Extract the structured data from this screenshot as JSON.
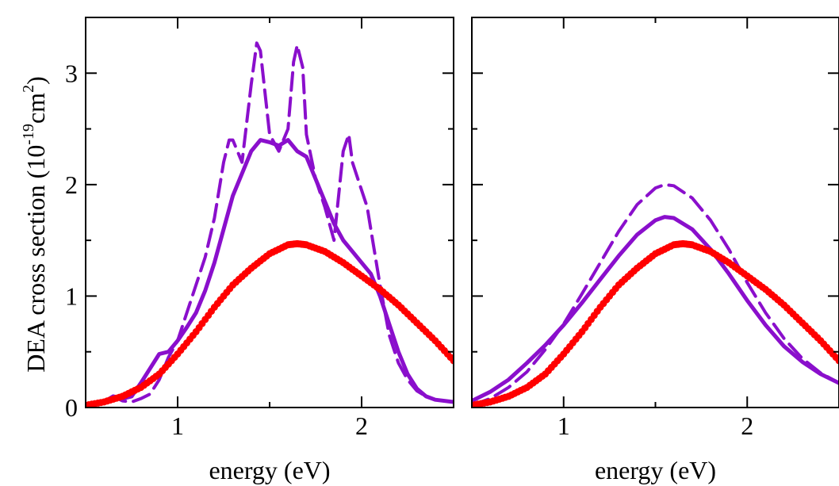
{
  "colors": {
    "model": "#8a0fcc",
    "experiment": "#ff0000",
    "axes": "#000000"
  },
  "y_label": {
    "prefix": "DEA cross section (10",
    "exp1": "-19",
    "mid": "cm",
    "exp2": "2",
    "suffix": ")"
  },
  "chart_data": [
    {
      "type": "line",
      "xlabel": "energy (eV)",
      "xlim": [
        0.5,
        2.5
      ],
      "ylim": [
        0,
        3.5
      ],
      "xticks": [
        1,
        2
      ],
      "yticks": [
        0,
        1,
        2,
        3
      ],
      "series": [
        {
          "style": "dashed",
          "color": "#8a0fcc",
          "x": [
            0.5,
            0.6,
            0.65,
            0.7,
            0.75,
            0.8,
            0.85,
            0.9,
            0.95,
            1.0,
            1.05,
            1.1,
            1.15,
            1.2,
            1.25,
            1.28,
            1.3,
            1.35,
            1.4,
            1.43,
            1.45,
            1.47,
            1.5,
            1.55,
            1.6,
            1.63,
            1.65,
            1.68,
            1.7,
            1.75,
            1.8,
            1.85,
            1.9,
            1.93,
            1.95,
            2.0,
            2.03,
            2.05,
            2.1,
            2.15,
            2.2,
            2.25,
            2.3,
            2.35,
            2.4,
            2.5
          ],
          "y": [
            0.02,
            0.05,
            0.1,
            0.06,
            0.05,
            0.08,
            0.12,
            0.25,
            0.45,
            0.6,
            0.85,
            1.1,
            1.35,
            1.7,
            2.2,
            2.4,
            2.4,
            2.2,
            2.9,
            3.27,
            3.2,
            2.9,
            2.45,
            2.3,
            2.5,
            3.1,
            3.25,
            3.05,
            2.45,
            2.05,
            1.8,
            1.5,
            2.3,
            2.45,
            2.2,
            1.95,
            1.8,
            1.6,
            1.1,
            0.65,
            0.4,
            0.25,
            0.15,
            0.1,
            0.07,
            0.05
          ]
        },
        {
          "style": "solid",
          "color": "#8a0fcc",
          "x": [
            0.5,
            0.6,
            0.65,
            0.7,
            0.75,
            0.8,
            0.85,
            0.9,
            0.95,
            1.0,
            1.05,
            1.1,
            1.15,
            1.2,
            1.25,
            1.3,
            1.35,
            1.4,
            1.45,
            1.5,
            1.55,
            1.6,
            1.65,
            1.7,
            1.75,
            1.8,
            1.85,
            1.9,
            1.95,
            2.0,
            2.05,
            2.1,
            2.15,
            2.2,
            2.25,
            2.3,
            2.35,
            2.4,
            2.5
          ],
          "y": [
            0.02,
            0.05,
            0.1,
            0.08,
            0.1,
            0.22,
            0.35,
            0.48,
            0.5,
            0.6,
            0.72,
            0.85,
            1.05,
            1.3,
            1.6,
            1.9,
            2.1,
            2.3,
            2.4,
            2.38,
            2.35,
            2.4,
            2.3,
            2.25,
            2.05,
            1.85,
            1.65,
            1.5,
            1.4,
            1.3,
            1.2,
            1.0,
            0.75,
            0.5,
            0.3,
            0.17,
            0.1,
            0.07,
            0.05
          ]
        },
        {
          "style": "solid-markers",
          "color": "#ff0000",
          "x": [
            0.5,
            0.6,
            0.7,
            0.8,
            0.9,
            1.0,
            1.1,
            1.2,
            1.3,
            1.4,
            1.5,
            1.6,
            1.65,
            1.7,
            1.8,
            1.9,
            2.0,
            2.1,
            2.2,
            2.3,
            2.4,
            2.5
          ],
          "y": [
            0.02,
            0.05,
            0.1,
            0.18,
            0.3,
            0.48,
            0.68,
            0.9,
            1.1,
            1.25,
            1.38,
            1.46,
            1.47,
            1.46,
            1.4,
            1.3,
            1.18,
            1.06,
            0.92,
            0.76,
            0.6,
            0.42
          ]
        }
      ]
    },
    {
      "type": "line",
      "xlabel": "energy (eV)",
      "xlim": [
        0.5,
        2.5
      ],
      "ylim": [
        0,
        3.5
      ],
      "xticks": [
        1,
        2
      ],
      "yticks": [
        0,
        1,
        2,
        3
      ],
      "series": [
        {
          "style": "dashed",
          "color": "#8a0fcc",
          "x": [
            0.5,
            0.6,
            0.7,
            0.8,
            0.9,
            1.0,
            1.1,
            1.2,
            1.3,
            1.4,
            1.5,
            1.55,
            1.6,
            1.7,
            1.8,
            1.9,
            2.0,
            2.1,
            2.2,
            2.3,
            2.4,
            2.5
          ],
          "y": [
            0.02,
            0.08,
            0.18,
            0.32,
            0.52,
            0.75,
            1.02,
            1.3,
            1.58,
            1.82,
            1.97,
            2.0,
            1.99,
            1.88,
            1.68,
            1.42,
            1.12,
            0.85,
            0.62,
            0.44,
            0.31,
            0.22
          ]
        },
        {
          "style": "solid",
          "color": "#8a0fcc",
          "x": [
            0.5,
            0.6,
            0.7,
            0.8,
            0.9,
            1.0,
            1.1,
            1.2,
            1.3,
            1.4,
            1.5,
            1.55,
            1.6,
            1.7,
            1.8,
            1.9,
            2.0,
            2.1,
            2.2,
            2.3,
            2.4,
            2.5
          ],
          "y": [
            0.06,
            0.14,
            0.25,
            0.4,
            0.56,
            0.74,
            0.94,
            1.15,
            1.36,
            1.55,
            1.68,
            1.71,
            1.7,
            1.6,
            1.42,
            1.2,
            0.96,
            0.74,
            0.55,
            0.41,
            0.3,
            0.22
          ]
        },
        {
          "style": "solid-markers",
          "color": "#ff0000",
          "x": [
            0.5,
            0.6,
            0.7,
            0.8,
            0.9,
            1.0,
            1.1,
            1.2,
            1.3,
            1.4,
            1.5,
            1.6,
            1.65,
            1.7,
            1.8,
            1.9,
            2.0,
            2.1,
            2.2,
            2.3,
            2.4,
            2.5
          ],
          "y": [
            0.02,
            0.05,
            0.1,
            0.18,
            0.3,
            0.48,
            0.68,
            0.9,
            1.1,
            1.25,
            1.38,
            1.46,
            1.47,
            1.46,
            1.4,
            1.3,
            1.18,
            1.06,
            0.92,
            0.76,
            0.6,
            0.42
          ]
        }
      ]
    }
  ]
}
